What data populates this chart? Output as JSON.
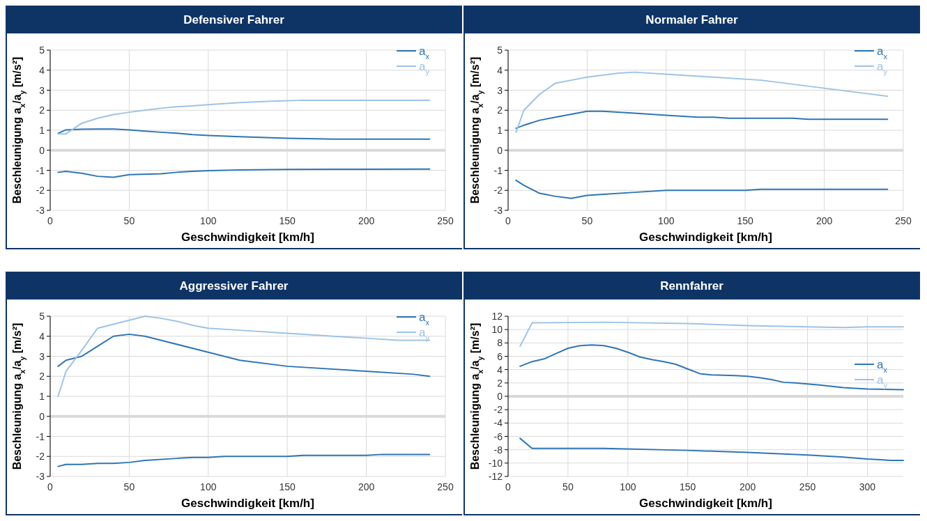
{
  "chart_data": [
    {
      "type": "line",
      "title": "Defensiver Fahrer",
      "xlabel": "Geschwindigkeit [km/h]",
      "ylabel": "Beschleunigung a$_{x}$/a$_{y}$ [m/s²]",
      "xlim": [
        0,
        250
      ],
      "xticks": [
        0,
        50,
        100,
        150,
        200,
        250
      ],
      "ylim": [
        -3,
        5
      ],
      "yticks": [
        -3,
        -2,
        -1,
        0,
        1,
        2,
        3,
        4,
        5
      ],
      "grid": true,
      "legend": "top right",
      "ref_lines": [
        {
          "axis": "y",
          "value": 0,
          "color": "#d9d9d9"
        }
      ],
      "series": [
        {
          "name": "a$_{x}$",
          "color": "#2e75b6",
          "x": [
            5,
            10,
            20,
            30,
            40,
            50,
            60,
            70,
            80,
            90,
            100,
            120,
            150,
            180,
            200,
            240
          ],
          "values": [
            0.85,
            1.02,
            1.05,
            1.06,
            1.06,
            1.02,
            0.96,
            0.9,
            0.85,
            0.78,
            0.74,
            0.68,
            0.6,
            0.56,
            0.56,
            0.56
          ]
        },
        {
          "name": "a$_{y}$",
          "color": "#9dc3e6",
          "x": [
            5,
            10,
            20,
            30,
            40,
            50,
            60,
            70,
            80,
            90,
            100,
            120,
            140,
            160,
            180,
            240
          ],
          "values": [
            0.82,
            0.82,
            1.35,
            1.6,
            1.78,
            1.9,
            2.0,
            2.1,
            2.17,
            2.22,
            2.28,
            2.38,
            2.45,
            2.5,
            2.5,
            2.5
          ]
        },
        {
          "color": "#2e75b6",
          "x": [
            5,
            10,
            20,
            30,
            40,
            50,
            70,
            80,
            90,
            100,
            120,
            150,
            180,
            240
          ],
          "values": [
            -1.1,
            -1.05,
            -1.15,
            -1.3,
            -1.35,
            -1.22,
            -1.17,
            -1.1,
            -1.05,
            -1.02,
            -0.98,
            -0.96,
            -0.95,
            -0.94
          ]
        }
      ]
    },
    {
      "type": "line",
      "title": "Normaler Fahrer",
      "xlabel": "Geschwindigkeit [km/h]",
      "ylabel": "Beschleunigung a$_{x}$/a$_{y}$ [m/s²]",
      "xlim": [
        0,
        250
      ],
      "xticks": [
        0,
        50,
        100,
        150,
        200,
        250
      ],
      "ylim": [
        -3,
        5
      ],
      "yticks": [
        -3,
        -2,
        -1,
        0,
        1,
        2,
        3,
        4,
        5
      ],
      "grid": true,
      "legend": "top right",
      "ref_lines": [
        {
          "axis": "y",
          "value": 0,
          "color": "#d9d9d9"
        }
      ],
      "series": [
        {
          "name": "a$_{x}$",
          "color": "#2e75b6",
          "x": [
            5,
            10,
            20,
            30,
            40,
            50,
            60,
            80,
            100,
            120,
            130,
            140,
            180,
            190,
            240
          ],
          "values": [
            1.1,
            1.25,
            1.5,
            1.65,
            1.8,
            1.95,
            1.95,
            1.85,
            1.75,
            1.65,
            1.65,
            1.6,
            1.6,
            1.55,
            1.55
          ]
        },
        {
          "name": "a$_{y}$",
          "color": "#9dc3e6",
          "x": [
            5,
            10,
            20,
            30,
            40,
            50,
            70,
            80,
            100,
            160,
            200,
            240
          ],
          "values": [
            0.9,
            2.0,
            2.8,
            3.35,
            3.5,
            3.65,
            3.85,
            3.9,
            3.8,
            3.5,
            3.1,
            2.7
          ]
        },
        {
          "color": "#2e75b6",
          "x": [
            5,
            10,
            20,
            30,
            40,
            50,
            60,
            80,
            100,
            150,
            160,
            240
          ],
          "values": [
            -1.5,
            -1.75,
            -2.15,
            -2.3,
            -2.4,
            -2.25,
            -2.2,
            -2.1,
            -2.0,
            -2.0,
            -1.95,
            -1.95
          ]
        }
      ]
    },
    {
      "type": "line",
      "title": "Aggressiver Fahrer",
      "xlabel": "Geschwindigkeit [km/h]",
      "ylabel": "Beschleunigung a$_{x}$/a$_{y}$ [m/s²]",
      "xlim": [
        0,
        250
      ],
      "xticks": [
        0,
        50,
        100,
        150,
        200,
        250
      ],
      "ylim": [
        -3,
        5
      ],
      "yticks": [
        -3,
        -2,
        -1,
        0,
        1,
        2,
        3,
        4,
        5
      ],
      "grid": true,
      "legend": "top right",
      "ref_lines": [
        {
          "axis": "y",
          "value": 0,
          "color": "#d9d9d9"
        }
      ],
      "series": [
        {
          "name": "a$_{x}$",
          "color": "#2e75b6",
          "x": [
            5,
            10,
            20,
            30,
            40,
            50,
            60,
            70,
            100,
            120,
            150,
            200,
            230,
            240
          ],
          "values": [
            2.5,
            2.8,
            3.0,
            3.5,
            4.0,
            4.1,
            4.0,
            3.8,
            3.2,
            2.8,
            2.5,
            2.25,
            2.1,
            2.0
          ]
        },
        {
          "name": "a$_{y}$",
          "color": "#9dc3e6",
          "x": [
            5,
            10,
            20,
            30,
            40,
            50,
            60,
            70,
            80,
            90,
            100,
            120,
            150,
            200,
            220,
            240
          ],
          "values": [
            1.0,
            2.25,
            3.3,
            4.4,
            4.6,
            4.8,
            5.0,
            4.9,
            4.75,
            4.55,
            4.4,
            4.3,
            4.15,
            3.9,
            3.8,
            3.8
          ]
        },
        {
          "color": "#2e75b6",
          "x": [
            5,
            10,
            20,
            30,
            40,
            50,
            60,
            80,
            90,
            100,
            110,
            150,
            160,
            200,
            210,
            240
          ],
          "values": [
            -2.5,
            -2.4,
            -2.4,
            -2.35,
            -2.35,
            -2.3,
            -2.2,
            -2.1,
            -2.05,
            -2.05,
            -2.0,
            -2.0,
            -1.95,
            -1.95,
            -1.9,
            -1.9
          ]
        }
      ]
    },
    {
      "type": "line",
      "title": "Rennfahrer",
      "xlabel": "Geschwindigkeit [km/h]",
      "ylabel": "Beschleunigung a$_{x}$/a$_{y}$ [m/s²]",
      "xlim": [
        0,
        330
      ],
      "xticks": [
        0,
        50,
        100,
        150,
        200,
        250,
        300
      ],
      "ylim": [
        -12,
        12
      ],
      "yticks": [
        -12,
        -10,
        -8,
        -6,
        -4,
        -2,
        0,
        2,
        4,
        6,
        8,
        10,
        12
      ],
      "grid": true,
      "legend": "right",
      "ref_lines": [
        {
          "axis": "y",
          "value": 0,
          "color": "#d9d9d9"
        }
      ],
      "series": [
        {
          "name": "a$_{x}$",
          "color": "#2e75b6",
          "x": [
            10,
            20,
            30,
            40,
            50,
            60,
            70,
            80,
            90,
            100,
            110,
            120,
            130,
            140,
            150,
            160,
            170,
            190,
            200,
            210,
            220,
            230,
            240,
            260,
            280,
            300,
            330
          ],
          "values": [
            4.5,
            5.2,
            5.6,
            6.4,
            7.2,
            7.6,
            7.7,
            7.6,
            7.2,
            6.6,
            5.9,
            5.5,
            5.2,
            4.8,
            4.1,
            3.4,
            3.2,
            3.1,
            3.0,
            2.8,
            2.5,
            2.1,
            2.0,
            1.7,
            1.3,
            1.1,
            1.0
          ]
        },
        {
          "name": "a$_{y}$",
          "color": "#9dc3e6",
          "x": [
            10,
            20,
            80,
            150,
            200,
            250,
            280,
            300,
            330
          ],
          "values": [
            7.5,
            11.0,
            11.1,
            10.9,
            10.6,
            10.4,
            10.3,
            10.4,
            10.4
          ]
        },
        {
          "color": "#2e75b6",
          "x": [
            10,
            20,
            80,
            150,
            200,
            250,
            280,
            300,
            320,
            330
          ],
          "values": [
            -6.3,
            -7.8,
            -7.8,
            -8.1,
            -8.4,
            -8.8,
            -9.1,
            -9.4,
            -9.6,
            -9.6
          ]
        }
      ]
    }
  ]
}
